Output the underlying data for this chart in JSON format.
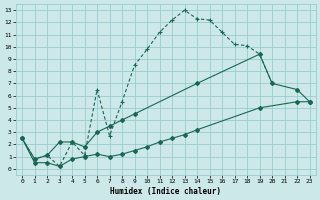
{
  "xlabel": "Humidex (Indice chaleur)",
  "xlim": [
    -0.5,
    23.5
  ],
  "ylim": [
    -0.5,
    13.5
  ],
  "xticks": [
    0,
    1,
    2,
    3,
    4,
    5,
    6,
    7,
    8,
    9,
    10,
    11,
    12,
    13,
    14,
    15,
    16,
    17,
    18,
    19,
    20,
    21,
    22,
    23
  ],
  "yticks": [
    0,
    1,
    2,
    3,
    4,
    5,
    6,
    7,
    8,
    9,
    10,
    11,
    12,
    13
  ],
  "background_color": "#cce8e8",
  "grid_color": "#99cccc",
  "line_color": "#1a6655",
  "line1_x": [
    0,
    1,
    2,
    3,
    4,
    5,
    6,
    7,
    8,
    9,
    10,
    11,
    12,
    13,
    14,
    15,
    16,
    17,
    18,
    19,
    20
  ],
  "line1_y": [
    2.5,
    0.8,
    1.1,
    0.2,
    2.2,
    1.1,
    6.5,
    2.7,
    5.5,
    8.5,
    9.8,
    11.2,
    12.2,
    13.0,
    12.3,
    12.2,
    11.2,
    10.2,
    10.1,
    9.4,
    7.0
  ],
  "line2_x": [
    0,
    1,
    2,
    3,
    4,
    5,
    6,
    7,
    8,
    9,
    14,
    19,
    20,
    22,
    23
  ],
  "line2_y": [
    2.5,
    0.8,
    1.1,
    2.2,
    2.2,
    1.8,
    3.0,
    3.5,
    4.0,
    4.5,
    7.0,
    9.4,
    7.0,
    6.5,
    5.5
  ],
  "line3_x": [
    0,
    1,
    2,
    3,
    4,
    5,
    6,
    7,
    8,
    9,
    10,
    11,
    12,
    13,
    14,
    19,
    22,
    23
  ],
  "line3_y": [
    2.5,
    0.5,
    0.5,
    0.2,
    0.8,
    1.0,
    1.2,
    1.0,
    1.2,
    1.5,
    1.8,
    2.2,
    2.5,
    2.8,
    3.2,
    5.0,
    5.5,
    5.5
  ]
}
